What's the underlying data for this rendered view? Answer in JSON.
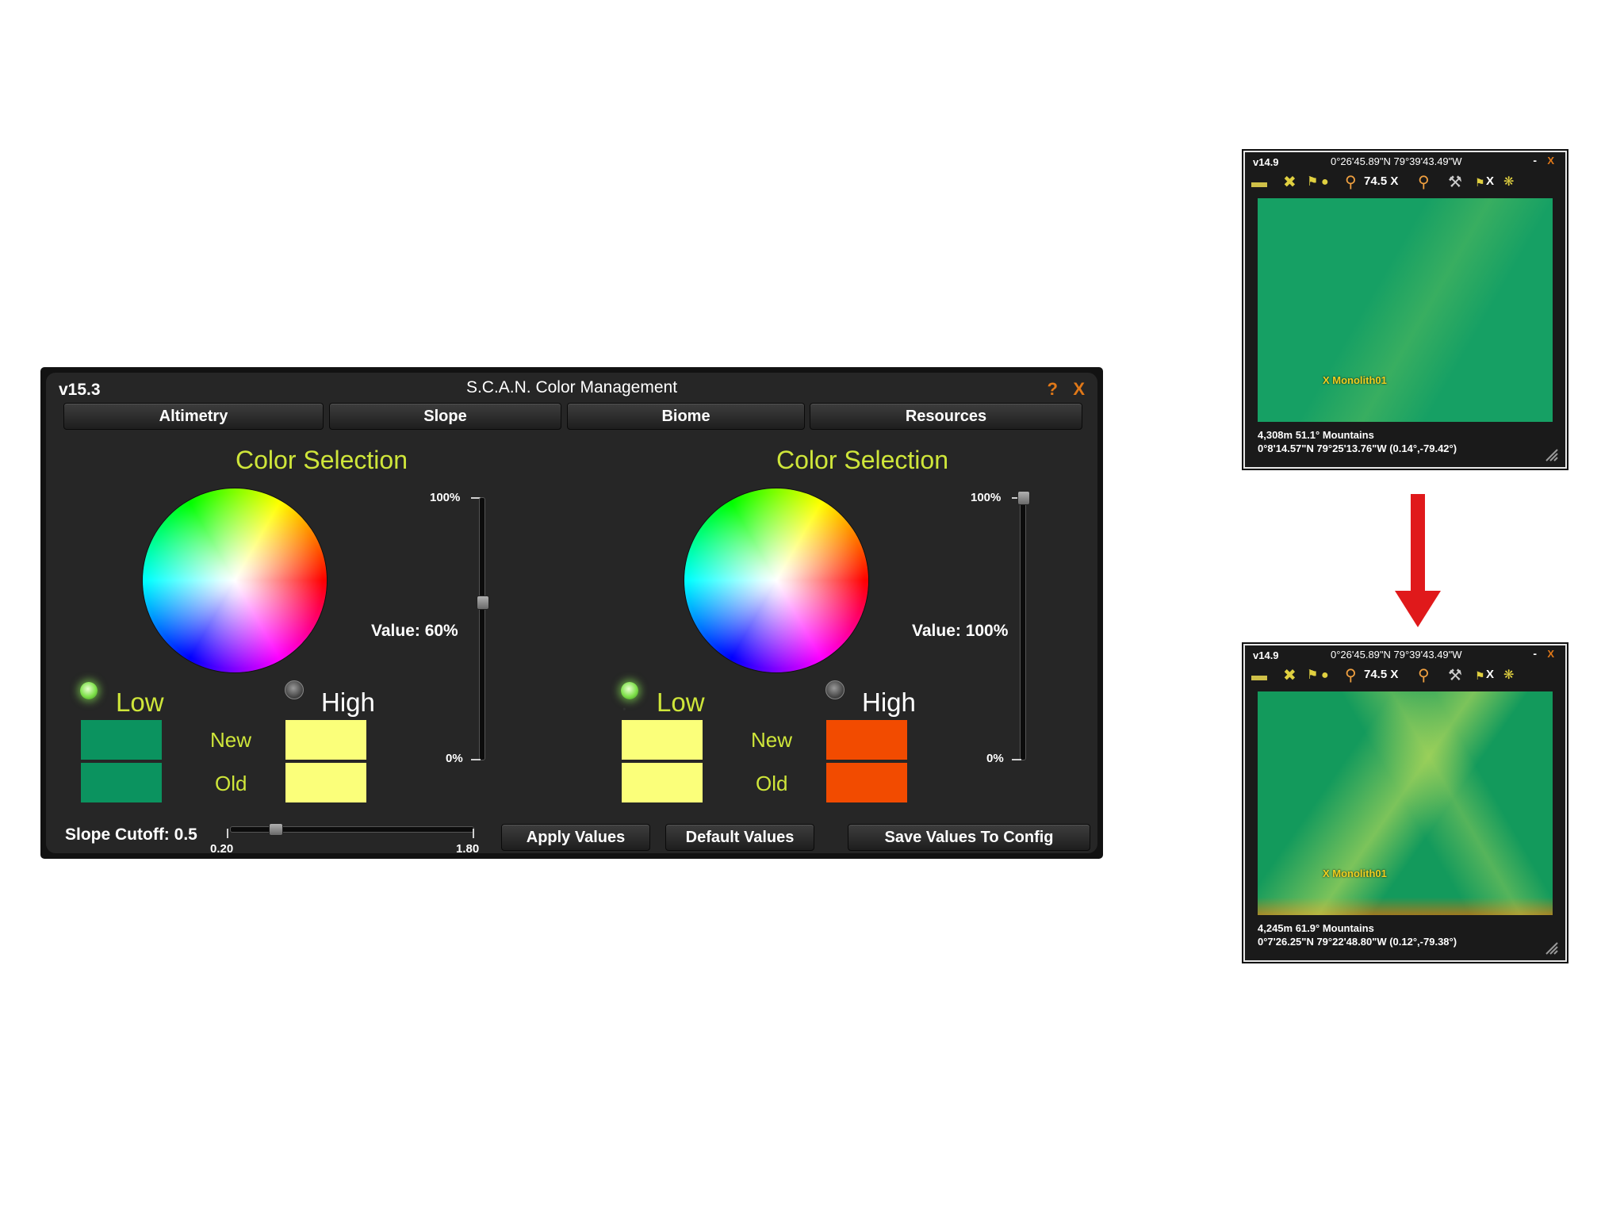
{
  "window": {
    "version": "v15.3",
    "title": "S.C.A.N. Color Management",
    "help_label": "?",
    "close_label": "X"
  },
  "tabs": [
    {
      "label": "Altimetry"
    },
    {
      "label": "Slope"
    },
    {
      "label": "Biome"
    },
    {
      "label": "Resources"
    }
  ],
  "left_picker": {
    "title": "Color Selection",
    "value_label": "Value: 60%",
    "value_pct": 60,
    "max_label": "100%",
    "min_label": "0%",
    "low_label": "Low",
    "high_label": "High",
    "low_selected": true,
    "new_label": "New",
    "old_label": "Old",
    "low_new_color": "#0b935f",
    "low_old_color": "#0b935f",
    "high_new_color": "#fbff7a",
    "high_old_color": "#fbff7a"
  },
  "right_picker": {
    "title": "Color Selection",
    "value_label": "Value: 100%",
    "value_pct": 100,
    "max_label": "100%",
    "min_label": "0%",
    "low_label": "Low",
    "high_label": "High",
    "low_selected": true,
    "new_label": "New",
    "old_label": "Old",
    "low_new_color": "#fbff7a",
    "low_old_color": "#fbff7a",
    "high_new_color": "#f24b00",
    "high_old_color": "#f24b00"
  },
  "bottom": {
    "slope_cutoff_label": "Slope Cutoff: 0.5",
    "slope_cutoff_value": 0.5,
    "slider_min_label": "0.20",
    "slider_max_label": "1.80",
    "apply_label": "Apply Values",
    "default_label": "Default Values",
    "save_label": "Save Values To Config"
  },
  "map_before": {
    "version": "v14.9",
    "coords": "0°26'45.89\"N 79°39'43.49\"W",
    "minimize_label": "-",
    "close_label": "X",
    "zoom": "74.5 X",
    "toolbar_x_label": "X",
    "marker": "X Monolith01",
    "info_line1": "4,308m  51.1° Mountains",
    "info_line2": "0°8'14.57\"N 79°25'13.76\"W (0.14°,-79.42°)"
  },
  "map_after": {
    "version": "v14.9",
    "coords": "0°26'45.89\"N 79°39'43.49\"W",
    "minimize_label": "-",
    "close_label": "X",
    "zoom": "74.5 X",
    "toolbar_x_label": "X",
    "marker": "X Monolith01",
    "info_line1": "4,245m  61.9° Mountains",
    "info_line2": "0°7'26.25\"N 79°22'48.80\"W (0.12°,-79.38°)"
  },
  "arrow_color": "#e0191b"
}
